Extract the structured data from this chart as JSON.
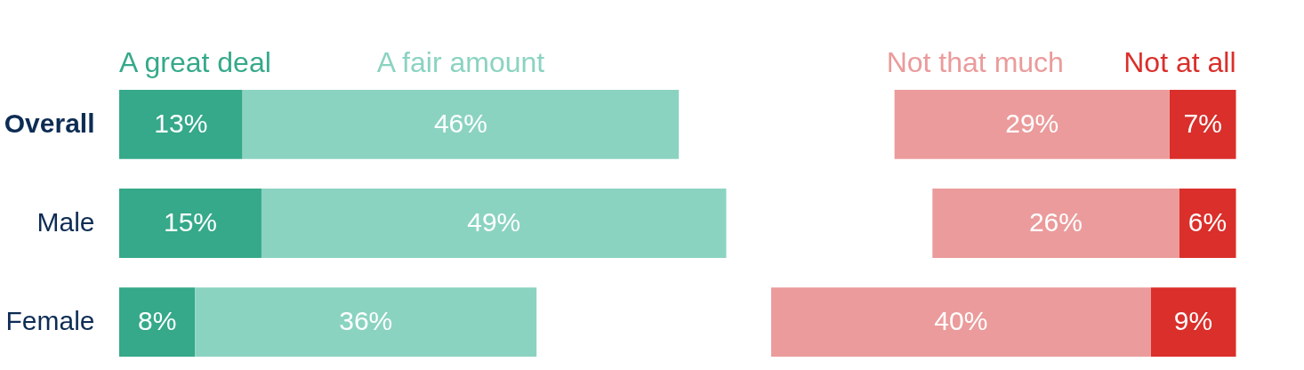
{
  "chart_data": [
    {
      "type": "bar",
      "orientation": "horizontal",
      "stacked": true,
      "legend": "top",
      "xlim": [
        0,
        64
      ],
      "categories": [
        "Overall",
        "Male",
        "Female"
      ],
      "series": [
        {
          "name": "A great deal",
          "color": "#35a98a",
          "values": [
            13,
            15,
            8
          ],
          "value_labels": [
            "13%",
            "15%",
            "8%"
          ]
        },
        {
          "name": "A fair amount",
          "color": "#8bd3c1",
          "values": [
            46,
            49,
            36
          ],
          "value_labels": [
            "46%",
            "49%",
            "36%"
          ]
        }
      ]
    },
    {
      "type": "bar",
      "orientation": "horizontal",
      "stacked": true,
      "legend": "top",
      "xlim": [
        49,
        0
      ],
      "tick_labels": false,
      "series": [
        {
          "name": "Not at all",
          "color": "#da2f2b",
          "values": [
            7,
            6,
            9
          ],
          "value_labels": [
            "7%",
            "6%",
            "9%"
          ]
        },
        {
          "name": "Not that much",
          "color": "#eb9b9b",
          "values": [
            29,
            26,
            40
          ],
          "value_labels": [
            "29%",
            "26%",
            "40%"
          ]
        }
      ]
    }
  ]
}
